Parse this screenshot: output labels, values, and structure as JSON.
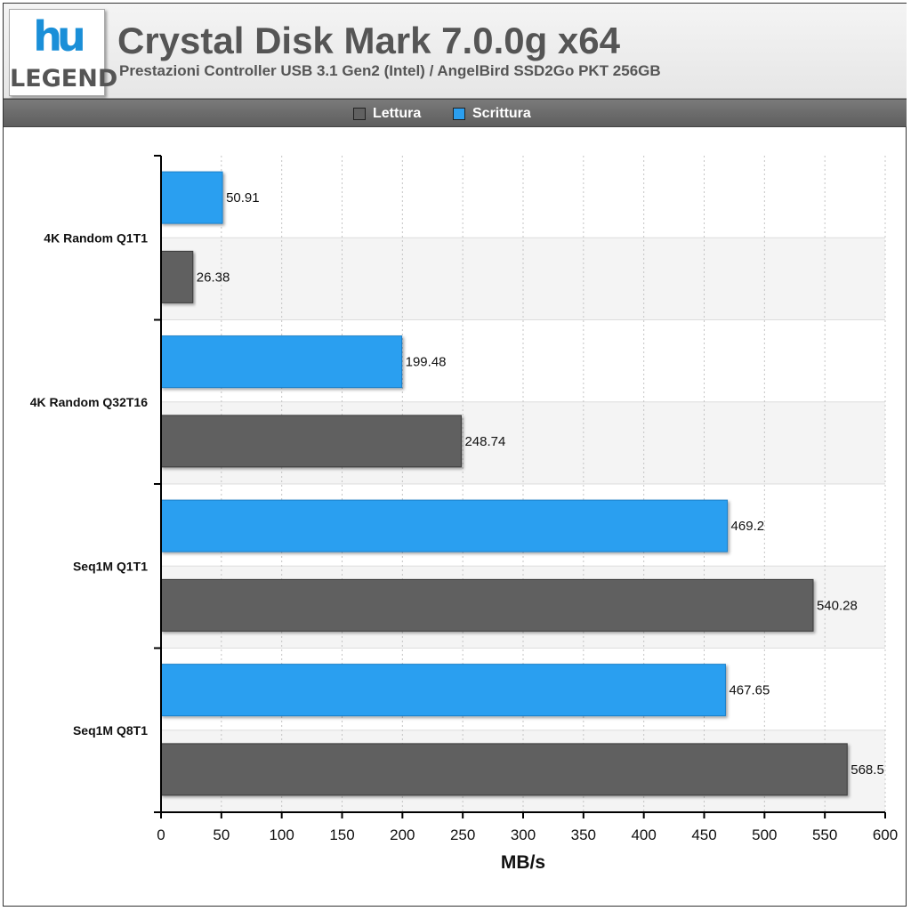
{
  "header": {
    "logo_top": "hu",
    "logo_bottom": "LEGEND",
    "title": "Crystal Disk Mark 7.0.0g x64",
    "subtitle": "Prestazioni Controller USB 3.1 Gen2 (Intel) / AngelBird SSD2Go PKT 256GB"
  },
  "colors": {
    "lettura": "#616161",
    "scrittura": "#2b9ff0",
    "logo_blue": "#1a8fd8"
  },
  "chart_data": {
    "type": "bar",
    "orientation": "horizontal",
    "title": "Crystal Disk Mark 7.0.0g x64",
    "subtitle": "Prestazioni Controller USB 3.1 Gen2 (Intel) / AngelBird SSD2Go PKT 256GB",
    "xlabel": "MB/s",
    "ylabel": "",
    "xlim": [
      0,
      600
    ],
    "ticks": [
      0,
      50,
      100,
      150,
      200,
      250,
      300,
      350,
      400,
      450,
      500,
      550,
      600
    ],
    "grid": true,
    "legend_position": "top",
    "categories": [
      "4K Random Q1T1",
      "4K Random Q32T16",
      "Seq1M Q1T1",
      "Seq1M Q8T1"
    ],
    "series": [
      {
        "name": "Lettura",
        "values": [
          26.38,
          248.74,
          540.28,
          568.5
        ]
      },
      {
        "name": "Scrittura",
        "values": [
          50.91,
          199.48,
          469.2,
          467.65
        ]
      }
    ],
    "data_labels": [
      [
        "26.38",
        "248.74",
        "540.28",
        "568.5"
      ],
      [
        "50.91",
        "199.48",
        "469.2",
        "467.65"
      ]
    ]
  }
}
